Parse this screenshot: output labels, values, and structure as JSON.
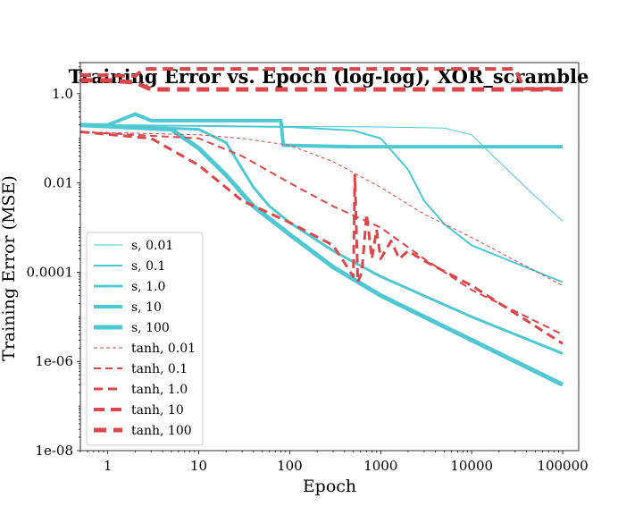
{
  "chart_data": {
    "type": "line",
    "title": "Training Error vs. Epoch (log-log), XOR_scramble",
    "xlabel": "Epoch",
    "ylabel": "Training Error (MSE)",
    "xscale": "log",
    "yscale": "log",
    "xlim": [
      0.5,
      150000
    ],
    "ylim": [
      1e-08,
      5
    ],
    "x_ticks": [
      1,
      10,
      100,
      1000,
      10000,
      100000
    ],
    "x_tick_labels": [
      "1",
      "10",
      "100",
      "1000",
      "10000",
      "100000"
    ],
    "y_ticks": [
      1e-08,
      1e-06,
      0.0001,
      0.01,
      1
    ],
    "y_tick_labels": [
      "1e-08",
      "1e-06",
      "0.0001",
      "0.01",
      "1.0"
    ],
    "grid": false,
    "legend_position": "lower-left",
    "colors": {
      "s": "#4fc8d2",
      "tanh": "#d9464b"
    },
    "series": [
      {
        "name": "s, 0.01",
        "family": "s",
        "width": 1,
        "dash": "solid",
        "points": [
          [
            0.5,
            0.2
          ],
          [
            10,
            0.19
          ],
          [
            100,
            0.185
          ],
          [
            1000,
            0.18
          ],
          [
            5000,
            0.17
          ],
          [
            10000,
            0.12
          ],
          [
            20000,
            0.03
          ],
          [
            50000,
            0.005
          ],
          [
            100000,
            0.0014
          ]
        ]
      },
      {
        "name": "s, 0.1",
        "family": "s",
        "width": 2,
        "dash": "solid",
        "points": [
          [
            0.5,
            0.2
          ],
          [
            10,
            0.19
          ],
          [
            100,
            0.18
          ],
          [
            500,
            0.15
          ],
          [
            1000,
            0.1
          ],
          [
            2000,
            0.02
          ],
          [
            3000,
            0.004
          ],
          [
            5000,
            0.0012
          ],
          [
            10000,
            0.0004
          ],
          [
            100000,
            6e-05
          ]
        ]
      },
      {
        "name": "s, 1.0",
        "family": "s",
        "width": 3,
        "dash": "solid",
        "points": [
          [
            0.5,
            0.2
          ],
          [
            10,
            0.16
          ],
          [
            20,
            0.08
          ],
          [
            40,
            0.008
          ],
          [
            60,
            0.003
          ],
          [
            100,
            0.0013
          ],
          [
            300,
            0.0003
          ],
          [
            1000,
            8e-05
          ],
          [
            10000,
            1e-05
          ],
          [
            100000,
            1.5e-06
          ]
        ]
      },
      {
        "name": "s, 10",
        "family": "s",
        "width": 4,
        "dash": "solid",
        "points": [
          [
            0.5,
            0.2
          ],
          [
            1,
            0.2
          ],
          [
            2,
            0.35
          ],
          [
            3,
            0.25
          ],
          [
            80,
            0.25
          ],
          [
            85,
            0.07
          ],
          [
            500,
            0.065
          ],
          [
            100000,
            0.065
          ]
        ]
      },
      {
        "name": "s, 100",
        "family": "s",
        "width": 5,
        "dash": "solid",
        "points": [
          [
            0.5,
            0.2
          ],
          [
            5,
            0.16
          ],
          [
            10,
            0.06
          ],
          [
            20,
            0.015
          ],
          [
            40,
            0.003
          ],
          [
            100,
            0.0007
          ],
          [
            300,
            0.00013
          ],
          [
            1000,
            3e-05
          ],
          [
            10000,
            3e-06
          ],
          [
            100000,
            3e-07
          ]
        ]
      },
      {
        "name": "tanh, 0.01",
        "family": "tanh",
        "width": 1,
        "dash": "4,3",
        "points": [
          [
            0.5,
            0.14
          ],
          [
            10,
            0.12
          ],
          [
            30,
            0.1
          ],
          [
            100,
            0.07
          ],
          [
            300,
            0.03
          ],
          [
            1000,
            0.008
          ],
          [
            3000,
            0.002
          ],
          [
            10000,
            0.0006
          ],
          [
            100000,
            5e-05
          ]
        ]
      },
      {
        "name": "tanh, 0.1",
        "family": "tanh",
        "width": 2,
        "dash": "8,5",
        "points": [
          [
            0.5,
            0.14
          ],
          [
            10,
            0.1
          ],
          [
            30,
            0.04
          ],
          [
            100,
            0.01
          ],
          [
            300,
            0.003
          ],
          [
            1000,
            0.001
          ],
          [
            3000,
            0.0002
          ],
          [
            10000,
            4e-05
          ],
          [
            100000,
            4e-06
          ]
        ]
      },
      {
        "name": "tanh, 1.0",
        "family": "tanh",
        "width": 3,
        "dash": "10,6",
        "points": [
          [
            0.5,
            0.14
          ],
          [
            3,
            0.1
          ],
          [
            10,
            0.025
          ],
          [
            30,
            0.004
          ],
          [
            100,
            0.0013
          ],
          [
            300,
            0.0004
          ],
          [
            500,
            8e-05
          ],
          [
            520,
            0.015
          ],
          [
            560,
            6e-05
          ],
          [
            620,
            0.0001
          ],
          [
            700,
            0.002
          ],
          [
            800,
            0.0002
          ],
          [
            900,
            0.0009
          ],
          [
            1000,
            0.0002
          ],
          [
            1300,
            0.0005
          ],
          [
            1600,
            0.0002
          ],
          [
            2000,
            0.0003
          ],
          [
            3000,
            0.00018
          ],
          [
            10000,
            5e-05
          ],
          [
            100000,
            2.5e-06
          ]
        ]
      },
      {
        "name": "tanh, 10",
        "family": "tanh",
        "width": 4,
        "dash": "12,7",
        "points": [
          [
            0.5,
            2.6
          ],
          [
            1,
            2.6
          ],
          [
            2,
            2.5
          ],
          [
            2.5,
            3.6
          ],
          [
            100,
            3.6
          ],
          [
            1000,
            3.6
          ],
          [
            30000,
            3.6
          ],
          [
            38000,
            1.3
          ],
          [
            100000,
            1.3
          ]
        ]
      },
      {
        "name": "tanh, 100",
        "family": "tanh",
        "width": 5,
        "dash": "14,8",
        "points": [
          [
            0.5,
            2
          ],
          [
            1,
            2
          ],
          [
            2,
            1.8
          ],
          [
            3,
            1.25
          ],
          [
            100,
            1.25
          ],
          [
            1000,
            1.25
          ],
          [
            10000,
            1.25
          ],
          [
            100000,
            1.25
          ]
        ]
      }
    ]
  }
}
